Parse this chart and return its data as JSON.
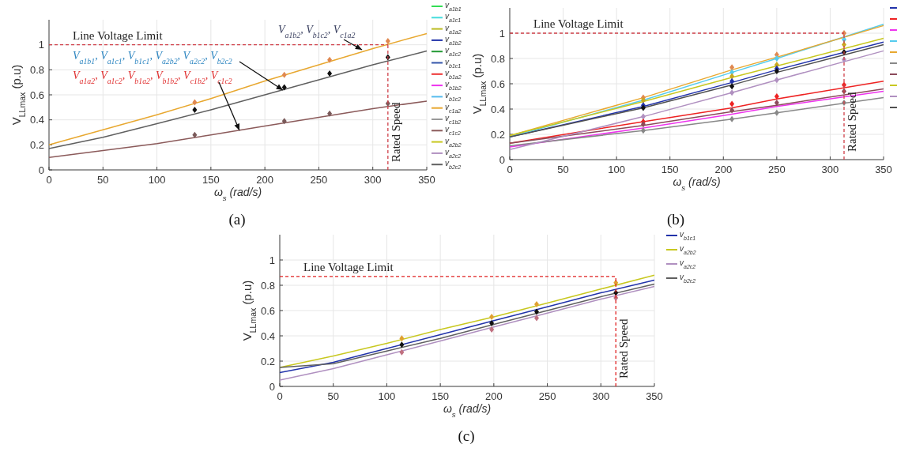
{
  "chart_data": [
    {
      "type": "line",
      "xlabel": "ω$_{s}$ (rad/s)",
      "ylabel": "V$_{LLmax}$ (p.u)",
      "x": [
        0,
        50,
        100,
        150,
        200,
        250,
        300,
        350
      ],
      "xlim": [
        0,
        350
      ],
      "xticks": [
        0,
        50,
        100,
        150,
        200,
        250,
        300,
        350
      ],
      "ylim": [
        0,
        1.2
      ],
      "yticks": [
        0,
        0.2,
        0.4,
        0.6,
        0.8,
        1
      ],
      "grid": true,
      "legend": "right",
      "marker": "none",
      "line_style": "solid",
      "ref_lines": [
        {
          "axis": "y",
          "value": 1,
          "label": "Line Voltage Limit",
          "color": "#d0404a",
          "line_style": "dashed"
        },
        {
          "axis": "x",
          "value": 314,
          "label": "Rated Speed",
          "color": "#d0404a",
          "line_style": "dashed"
        }
      ],
      "annotations": [
        {
          "text": "V$_{a1b2}$, V$_{b1c2}$, V$_{c1a2}$",
          "x": 290,
          "y": 0.96
        },
        "V$_{a1b1}$, V$_{a1c1}$, V$_{b1c1}$, V$_{a2b2}$, V$_{a2c2}$, V$_{b2c2}$",
        "V$_{a1a2}$, V$_{a1c2}$, V$_{b1a2}$, V$_{b1b2}$, V$_{c1b2}$, V$_{c1c2}$",
        "(a)"
      ],
      "series": [
        {
          "name": "v$_{a1b1}$",
          "color": "#33dd55",
          "values": [
            null,
            null,
            null,
            null,
            null,
            null,
            null,
            null
          ]
        },
        {
          "name": "v$_{a1c1}$",
          "color": "#44dddd",
          "values": [
            null,
            null,
            null,
            null,
            null,
            null,
            null,
            null
          ]
        },
        {
          "name": "v$_{a1a2}$",
          "color": "#bbbb22",
          "values": [
            null,
            null,
            null,
            null,
            null,
            null,
            null,
            null
          ]
        },
        {
          "name": "v$_{a1b2}$",
          "color": "#2233aa",
          "values": [
            null,
            null,
            null,
            null,
            null,
            null,
            null,
            null
          ]
        },
        {
          "name": "v$_{a1c2}$",
          "color": "#229933",
          "values": [
            null,
            null,
            null,
            null,
            null,
            null,
            null,
            null
          ]
        },
        {
          "name": "v$_{b1c1}$",
          "color": "#3355aa",
          "values": [
            null,
            null,
            null,
            null,
            null,
            null,
            null,
            null
          ]
        },
        {
          "name": "v$_{b1a2}$",
          "color": "#ee3333",
          "values": [
            null,
            null,
            null,
            null,
            null,
            null,
            null,
            null
          ]
        },
        {
          "name": "v$_{b1b2}$",
          "color": "#ee33ee",
          "values": [
            null,
            null,
            null,
            null,
            null,
            null,
            null,
            null
          ]
        },
        {
          "name": "v$_{b1c2}$",
          "color": "#55bbee",
          "values": [
            null,
            null,
            null,
            null,
            null,
            null,
            null,
            null
          ]
        },
        {
          "name": "v$_{c1a2}$",
          "color": "#e8a830",
          "values": [
            0.2,
            0.32,
            0.44,
            0.57,
            0.71,
            0.84,
            0.97,
            1.09
          ]
        },
        {
          "name": "v$_{c1b2}$",
          "color": "#999999",
          "values": [
            null,
            null,
            null,
            null,
            null,
            null,
            null,
            null
          ]
        },
        {
          "name": "v$_{c1c2}$",
          "color": "#8b5a5a",
          "values": [
            0.1,
            0.155,
            0.21,
            0.28,
            0.35,
            0.42,
            0.49,
            0.55
          ]
        },
        {
          "name": "v$_{a2b2}$",
          "color": "#c8c820",
          "values": [
            null,
            null,
            null,
            null,
            null,
            null,
            null,
            null
          ]
        },
        {
          "name": "v$_{a2c2}$",
          "color": "#b090c0",
          "values": [
            null,
            null,
            null,
            null,
            null,
            null,
            null,
            null
          ]
        },
        {
          "name": "v$_{b2c2}$",
          "color": "#606060",
          "values": [
            0.17,
            0.26,
            0.37,
            0.48,
            0.6,
            0.72,
            0.84,
            0.95
          ]
        },
        {
          "type": "scatter",
          "marker": "diamond",
          "color": "#e08850",
          "x": [
            135,
            218,
            260,
            314
          ],
          "values": [
            0.54,
            0.76,
            0.88,
            1.03
          ]
        },
        {
          "type": "scatter",
          "marker": "diamond",
          "color": "#111111",
          "x": [
            135,
            218,
            260,
            314
          ],
          "values": [
            0.48,
            0.66,
            0.77,
            0.9
          ]
        },
        {
          "type": "scatter",
          "marker": "diamond",
          "color": "#7a5a5a",
          "x": [
            135,
            218,
            260,
            314
          ],
          "values": [
            0.28,
            0.39,
            0.45,
            0.53
          ]
        }
      ]
    },
    {
      "type": "line",
      "xlabel": "ω$_{s}$ (rad/s)",
      "ylabel": "V$_{LLmax}$ (p.u)",
      "x": [
        0,
        125,
        208,
        250,
        350
      ],
      "xlim": [
        0,
        350
      ],
      "xticks": [
        0,
        50,
        100,
        150,
        200,
        250,
        300,
        350
      ],
      "ylim": [
        0,
        1.2
      ],
      "yticks": [
        0,
        0.2,
        0.4,
        0.6,
        0.8,
        1
      ],
      "grid": true,
      "legend": "right",
      "marker": "none",
      "line_style": "solid",
      "ref_lines": [
        {
          "axis": "y",
          "value": 1,
          "label": "Line Voltage Limit",
          "color": "#d0404a",
          "line_style": "dashed"
        },
        {
          "axis": "x",
          "value": 313,
          "label": "Rated Speed",
          "color": "#d0404a",
          "line_style": "dashed"
        }
      ],
      "annotations": [
        "(b)"
      ],
      "series": [
        {
          "color": "#2233aa",
          "values": [
            0.18,
            0.42,
            0.61,
            0.71,
            0.93
          ]
        },
        {
          "color": "#ee2222",
          "values": [
            0.13,
            0.3,
            0.41,
            0.48,
            0.62
          ]
        },
        {
          "color": "#ee33ee",
          "values": [
            0.1,
            0.25,
            0.36,
            0.42,
            0.54
          ]
        },
        {
          "color": "#55ccee",
          "values": [
            0.18,
            0.47,
            0.69,
            0.8,
            1.07
          ]
        },
        {
          "color": "#e8a830",
          "values": [
            0.19,
            0.49,
            0.71,
            0.81,
            1.06
          ]
        },
        {
          "color": "#888888",
          "values": [
            0.11,
            0.23,
            0.32,
            0.37,
            0.49
          ]
        },
        {
          "color": "#8b4a5a",
          "values": [
            0.13,
            0.27,
            0.38,
            0.43,
            0.56
          ]
        },
        {
          "color": "#c8c820",
          "values": [
            0.19,
            0.46,
            0.65,
            0.74,
            0.96
          ]
        },
        {
          "color": "#b090c0",
          "values": [
            0.08,
            0.34,
            0.53,
            0.63,
            0.86
          ]
        },
        {
          "color": "#505050",
          "values": [
            0.18,
            0.41,
            0.59,
            0.69,
            0.91
          ]
        },
        {
          "type": "scatter",
          "marker": "diamond",
          "color": "#e08850",
          "x": [
            125,
            208,
            250,
            313
          ],
          "values": [
            0.49,
            0.73,
            0.83,
            1.0
          ]
        },
        {
          "type": "scatter",
          "marker": "diamond",
          "color": "#55ccee",
          "x": [
            208,
            250,
            313
          ],
          "values": [
            0.69,
            0.8,
            0.95
          ]
        },
        {
          "type": "scatter",
          "marker": "diamond",
          "color": "#c8a820",
          "x": [
            125,
            208,
            250,
            313
          ],
          "values": [
            0.47,
            0.66,
            0.75,
            0.91
          ]
        },
        {
          "type": "scatter",
          "marker": "diamond",
          "color": "#2233aa",
          "x": [
            125,
            208,
            250
          ],
          "values": [
            0.43,
            0.62,
            0.72
          ]
        },
        {
          "type": "scatter",
          "marker": "diamond",
          "color": "#111111",
          "x": [
            125,
            208,
            250,
            313
          ],
          "values": [
            0.41,
            0.58,
            0.7,
            0.85
          ]
        },
        {
          "type": "scatter",
          "marker": "diamond",
          "color": "#b090c0",
          "x": [
            125,
            208,
            250,
            313
          ],
          "values": [
            0.34,
            0.53,
            0.63,
            0.79
          ]
        },
        {
          "type": "scatter",
          "marker": "diamond",
          "color": "#ee2222",
          "x": [
            125,
            208,
            250,
            313
          ],
          "values": [
            0.3,
            0.44,
            0.5,
            0.59
          ]
        },
        {
          "type": "scatter",
          "marker": "diamond",
          "color": "#8b4a5a",
          "x": [
            125,
            208,
            250,
            313
          ],
          "values": [
            0.28,
            0.39,
            0.45,
            0.54
          ]
        },
        {
          "type": "scatter",
          "marker": "diamond",
          "color": "#888888",
          "x": [
            125,
            208,
            250,
            313
          ],
          "values": [
            0.23,
            0.32,
            0.37,
            0.45
          ]
        }
      ]
    },
    {
      "type": "line",
      "xlabel": "ω$_{s}$ (rad/s)",
      "ylabel": "V$_{LLmax}$ (p.u)",
      "x": [
        0,
        50,
        100,
        150,
        200,
        250,
        300,
        350
      ],
      "xlim": [
        0,
        350
      ],
      "xticks": [
        0,
        50,
        100,
        150,
        200,
        250,
        300,
        350
      ],
      "ylim": [
        0,
        1.2
      ],
      "yticks": [
        0,
        0.2,
        0.4,
        0.6,
        0.8,
        1
      ],
      "grid": true,
      "legend": "right",
      "marker": "none",
      "line_style": "solid",
      "ref_lines": [
        {
          "axis": "y",
          "value": 0.87,
          "label": "Line Voltage Limit",
          "color": "#e02020",
          "line_style": "dashed"
        },
        {
          "axis": "x",
          "value": 314,
          "label": "Rated Speed",
          "color": "#e02020",
          "line_style": "dashed"
        }
      ],
      "annotations": [
        "(c)"
      ],
      "series": [
        {
          "name": "v$_{b1c1}$",
          "color": "#2233aa",
          "values": [
            0.11,
            0.19,
            0.3,
            0.41,
            0.52,
            0.63,
            0.74,
            0.84
          ]
        },
        {
          "name": "v$_{a2b2}$",
          "color": "#c8c820",
          "values": [
            0.15,
            0.24,
            0.34,
            0.45,
            0.55,
            0.66,
            0.77,
            0.88
          ]
        },
        {
          "name": "v$_{a2c2}$",
          "color": "#b090c0",
          "values": [
            0.05,
            0.14,
            0.25,
            0.36,
            0.47,
            0.58,
            0.69,
            0.79
          ]
        },
        {
          "name": "v$_{b2c2}$",
          "color": "#606060",
          "values": [
            0.15,
            0.18,
            0.28,
            0.38,
            0.49,
            0.6,
            0.71,
            0.81
          ]
        },
        {
          "type": "scatter",
          "marker": "diamond",
          "color": "#e0a030",
          "x": [
            114,
            198,
            240,
            314
          ],
          "values": [
            0.38,
            0.55,
            0.65,
            0.82
          ]
        },
        {
          "type": "scatter",
          "marker": "diamond",
          "color": "#111111",
          "x": [
            114,
            198,
            240,
            314
          ],
          "values": [
            0.33,
            0.5,
            0.59,
            0.74
          ]
        },
        {
          "type": "scatter",
          "marker": "diamond",
          "color": "#c07080",
          "x": [
            114,
            198,
            240,
            314
          ],
          "values": [
            0.27,
            0.45,
            0.54,
            0.7
          ]
        }
      ]
    }
  ]
}
